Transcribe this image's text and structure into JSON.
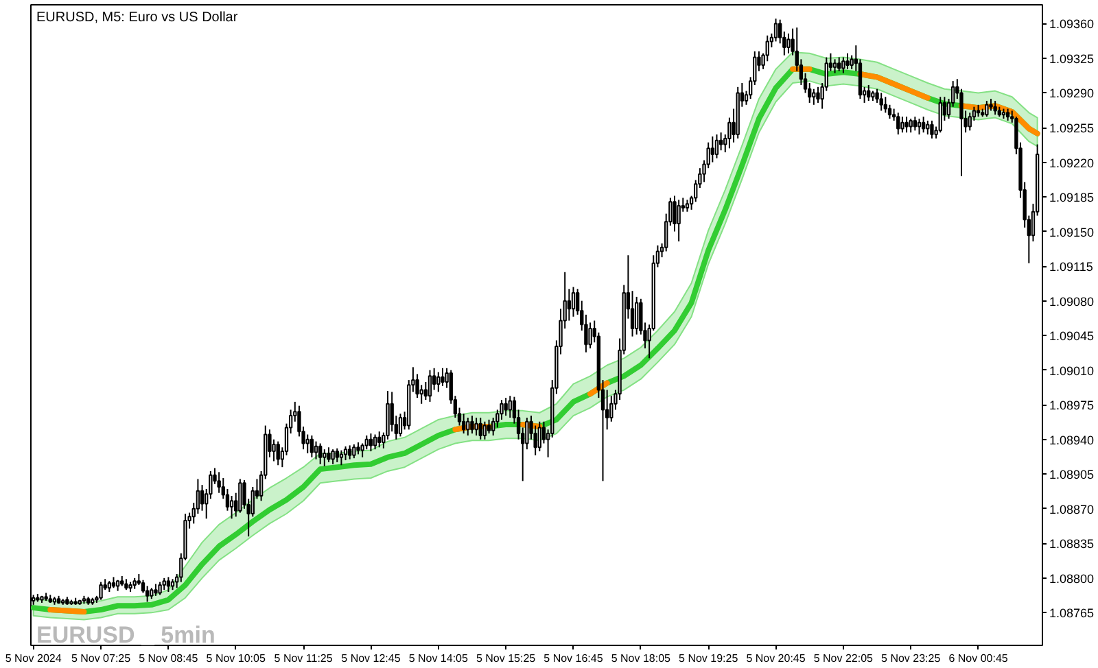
{
  "chart_data": {
    "type": "candlestick",
    "title": "EURUSD, M5: Euro vs US Dollar",
    "annotations": [
      "EURUSD _ 5min"
    ],
    "x": [
      "2024-11-05T06:05",
      "2024-11-05T06:10",
      "2024-11-05T06:15",
      "2024-11-05T06:20",
      "2024-11-05T06:25",
      "2024-11-05T06:30",
      "2024-11-05T06:35",
      "2024-11-05T06:40",
      "2024-11-05T06:45",
      "2024-11-05T06:50",
      "2024-11-05T06:55",
      "2024-11-05T07:00",
      "2024-11-05T07:05",
      "2024-11-05T07:10",
      "2024-11-05T07:15",
      "2024-11-05T07:20",
      "2024-11-05T07:25",
      "2024-11-05T07:30",
      "2024-11-05T07:35",
      "2024-11-05T07:40",
      "2024-11-05T07:45",
      "2024-11-05T07:50",
      "2024-11-05T07:55",
      "2024-11-05T08:00",
      "2024-11-05T08:05",
      "2024-11-05T08:10",
      "2024-11-05T08:15",
      "2024-11-05T08:20",
      "2024-11-05T08:25",
      "2024-11-05T08:30",
      "2024-11-05T08:35",
      "2024-11-05T08:40",
      "2024-11-05T08:45",
      "2024-11-05T08:50",
      "2024-11-05T08:55",
      "2024-11-05T09:00",
      "2024-11-05T09:05",
      "2024-11-05T09:10",
      "2024-11-05T09:15",
      "2024-11-05T09:20",
      "2024-11-05T09:25",
      "2024-11-05T09:30",
      "2024-11-05T09:35",
      "2024-11-05T09:40",
      "2024-11-05T09:45",
      "2024-11-05T09:50",
      "2024-11-05T09:55",
      "2024-11-05T10:00",
      "2024-11-05T10:05",
      "2024-11-05T10:10",
      "2024-11-05T10:15",
      "2024-11-05T10:20",
      "2024-11-05T10:25",
      "2024-11-05T10:30",
      "2024-11-05T10:35",
      "2024-11-05T10:40",
      "2024-11-05T10:45",
      "2024-11-05T10:50",
      "2024-11-05T10:55",
      "2024-11-05T11:00",
      "2024-11-05T11:05",
      "2024-11-05T11:10",
      "2024-11-05T11:15",
      "2024-11-05T11:20",
      "2024-11-05T11:25",
      "2024-11-05T11:30",
      "2024-11-05T11:35",
      "2024-11-05T11:40",
      "2024-11-05T11:45",
      "2024-11-05T11:50",
      "2024-11-05T11:55",
      "2024-11-05T12:00",
      "2024-11-05T12:05",
      "2024-11-05T12:10",
      "2024-11-05T12:15",
      "2024-11-05T12:20",
      "2024-11-05T12:25",
      "2024-11-05T12:30",
      "2024-11-05T12:35",
      "2024-11-05T12:40",
      "2024-11-05T12:45",
      "2024-11-05T12:50",
      "2024-11-05T12:55",
      "2024-11-05T13:00",
      "2024-11-05T13:05",
      "2024-11-05T13:10",
      "2024-11-05T13:15",
      "2024-11-05T13:20",
      "2024-11-05T13:25",
      "2024-11-05T13:30",
      "2024-11-05T13:35",
      "2024-11-05T13:40",
      "2024-11-05T13:45",
      "2024-11-05T13:50",
      "2024-11-05T13:55",
      "2024-11-05T14:00",
      "2024-11-05T14:05",
      "2024-11-05T14:10",
      "2024-11-05T14:15",
      "2024-11-05T14:20",
      "2024-11-05T14:25",
      "2024-11-05T14:30",
      "2024-11-05T14:35",
      "2024-11-05T14:40",
      "2024-11-05T14:45",
      "2024-11-05T14:50",
      "2024-11-05T14:55",
      "2024-11-05T15:00",
      "2024-11-05T15:05",
      "2024-11-05T15:10",
      "2024-11-05T15:15",
      "2024-11-05T15:20",
      "2024-11-05T15:25",
      "2024-11-05T15:30",
      "2024-11-05T15:35",
      "2024-11-05T15:40",
      "2024-11-05T15:45",
      "2024-11-05T15:50",
      "2024-11-05T15:55",
      "2024-11-05T16:00",
      "2024-11-05T16:05",
      "2024-11-05T16:10",
      "2024-11-05T16:15",
      "2024-11-05T16:20",
      "2024-11-05T16:25",
      "2024-11-05T16:30",
      "2024-11-05T16:35",
      "2024-11-05T16:40",
      "2024-11-05T16:45",
      "2024-11-05T16:50",
      "2024-11-05T16:55",
      "2024-11-05T17:00",
      "2024-11-05T17:05",
      "2024-11-05T17:10",
      "2024-11-05T17:15",
      "2024-11-05T17:20",
      "2024-11-05T17:25",
      "2024-11-05T17:30",
      "2024-11-05T17:35",
      "2024-11-05T17:40",
      "2024-11-05T17:45",
      "2024-11-05T17:50",
      "2024-11-05T17:55",
      "2024-11-05T18:00",
      "2024-11-05T18:05",
      "2024-11-05T18:10",
      "2024-11-05T18:15",
      "2024-11-05T18:20",
      "2024-11-05T18:25",
      "2024-11-05T18:30",
      "2024-11-05T18:35",
      "2024-11-05T18:40",
      "2024-11-05T18:45",
      "2024-11-05T18:50",
      "2024-11-05T18:55",
      "2024-11-05T19:00",
      "2024-11-05T19:05",
      "2024-11-05T19:10",
      "2024-11-05T19:15",
      "2024-11-05T19:20",
      "2024-11-05T19:25",
      "2024-11-05T19:30",
      "2024-11-05T19:35",
      "2024-11-05T19:40",
      "2024-11-05T19:45",
      "2024-11-05T19:50",
      "2024-11-05T19:55",
      "2024-11-05T20:00",
      "2024-11-05T20:05",
      "2024-11-05T20:10",
      "2024-11-05T20:15",
      "2024-11-05T20:20",
      "2024-11-05T20:25",
      "2024-11-05T20:30",
      "2024-11-05T20:35",
      "2024-11-05T20:40",
      "2024-11-05T20:45",
      "2024-11-05T20:50",
      "2024-11-05T20:55",
      "2024-11-05T21:00",
      "2024-11-05T21:05",
      "2024-11-05T21:10",
      "2024-11-05T21:15",
      "2024-11-05T21:20",
      "2024-11-05T21:25",
      "2024-11-05T21:30",
      "2024-11-05T21:35",
      "2024-11-05T21:40",
      "2024-11-05T21:45",
      "2024-11-05T21:50",
      "2024-11-05T21:55",
      "2024-11-05T22:00",
      "2024-11-05T22:05",
      "2024-11-05T22:10",
      "2024-11-05T22:15",
      "2024-11-05T22:20",
      "2024-11-05T22:25",
      "2024-11-05T22:30",
      "2024-11-05T22:35",
      "2024-11-05T22:40",
      "2024-11-05T22:45",
      "2024-11-05T22:50",
      "2024-11-05T22:55",
      "2024-11-05T23:00",
      "2024-11-05T23:05",
      "2024-11-05T23:10",
      "2024-11-05T23:15",
      "2024-11-05T23:20",
      "2024-11-05T23:25",
      "2024-11-05T23:30",
      "2024-11-05T23:35",
      "2024-11-05T23:40",
      "2024-11-05T23:45",
      "2024-11-05T23:50",
      "2024-11-05T23:55",
      "2024-11-06T00:00",
      "2024-11-06T00:05",
      "2024-11-06T00:10",
      "2024-11-06T00:15",
      "2024-11-06T00:20",
      "2024-11-06T00:25",
      "2024-11-06T00:30",
      "2024-11-06T00:35",
      "2024-11-06T00:40",
      "2024-11-06T00:45",
      "2024-11-06T00:50",
      "2024-11-06T00:55",
      "2024-11-06T01:00",
      "2024-11-06T01:05",
      "2024-11-06T01:10",
      "2024-11-06T01:15",
      "2024-11-06T01:20",
      "2024-11-06T01:25",
      "2024-11-06T01:30",
      "2024-11-06T01:35",
      "2024-11-06T01:40",
      "2024-11-06T01:45",
      "2024-11-06T01:50",
      "2024-11-06T01:55"
    ],
    "ohlc": [
      [
        1.08777,
        1.08783,
        1.08773,
        1.0878
      ],
      [
        1.0878,
        1.08784,
        1.08776,
        1.08778
      ],
      [
        1.08778,
        1.08782,
        1.08775,
        1.08781
      ],
      [
        1.08781,
        1.08785,
        1.08777,
        1.08779
      ],
      [
        1.08779,
        1.08783,
        1.08775,
        1.08776
      ],
      [
        1.08776,
        1.08781,
        1.08773,
        1.08779
      ],
      [
        1.08779,
        1.08782,
        1.08774,
        1.08775
      ],
      [
        1.08775,
        1.08779,
        1.08773,
        1.08777
      ],
      [
        1.08778,
        1.08781,
        1.08773,
        1.08774
      ],
      [
        1.08774,
        1.08778,
        1.08773,
        1.08776
      ],
      [
        1.08776,
        1.0878,
        1.08773,
        1.08774
      ],
      [
        1.08774,
        1.08778,
        1.08773,
        1.08777
      ],
      [
        1.08777,
        1.08782,
        1.08774,
        1.08779
      ],
      [
        1.08779,
        1.08781,
        1.08773,
        1.08775
      ],
      [
        1.08775,
        1.0878,
        1.08773,
        1.08778
      ],
      [
        1.08778,
        1.08782,
        1.08775,
        1.0878
      ],
      [
        1.0878,
        1.08796,
        1.08778,
        1.08793
      ],
      [
        1.08793,
        1.08799,
        1.08788,
        1.0879
      ],
      [
        1.0879,
        1.08797,
        1.08786,
        1.08795
      ],
      [
        1.08795,
        1.08801,
        1.0879,
        1.08792
      ],
      [
        1.08792,
        1.08798,
        1.08787,
        1.08797
      ],
      [
        1.08797,
        1.08802,
        1.08792,
        1.08794
      ],
      [
        1.08794,
        1.08799,
        1.08788,
        1.0879
      ],
      [
        1.0879,
        1.08796,
        1.08786,
        1.08793
      ],
      [
        1.08793,
        1.088,
        1.08789,
        1.08797
      ],
      [
        1.08797,
        1.08804,
        1.08793,
        1.08795
      ],
      [
        1.08795,
        1.08798,
        1.08785,
        1.08787
      ],
      [
        1.08787,
        1.08792,
        1.08776,
        1.08782
      ],
      [
        1.08782,
        1.0879,
        1.08779,
        1.08788
      ],
      [
        1.08788,
        1.08794,
        1.08782,
        1.08785
      ],
      [
        1.08785,
        1.08796,
        1.08783,
        1.08793
      ],
      [
        1.08793,
        1.088,
        1.08788,
        1.08797
      ],
      [
        1.08797,
        1.08801,
        1.08786,
        1.08792
      ],
      [
        1.08792,
        1.08799,
        1.08788,
        1.08796
      ],
      [
        1.08796,
        1.08804,
        1.0879,
        1.08801
      ],
      [
        1.08801,
        1.08825,
        1.08796,
        1.0882
      ],
      [
        1.0882,
        1.08865,
        1.08818,
        1.08858
      ],
      [
        1.08858,
        1.08866,
        1.0885,
        1.08862
      ],
      [
        1.08862,
        1.08876,
        1.08855,
        1.0887
      ],
      [
        1.0887,
        1.089,
        1.08865,
        1.08888
      ],
      [
        1.08888,
        1.08894,
        1.08868,
        1.08875
      ],
      [
        1.08875,
        1.0889,
        1.0886,
        1.08885
      ],
      [
        1.08885,
        1.08908,
        1.0888,
        1.08904
      ],
      [
        1.08904,
        1.08911,
        1.08895,
        1.08898
      ],
      [
        1.08898,
        1.08907,
        1.08886,
        1.08892
      ],
      [
        1.08892,
        1.08901,
        1.0888,
        1.08884
      ],
      [
        1.08884,
        1.0889,
        1.08868,
        1.08872
      ],
      [
        1.08872,
        1.08883,
        1.0886,
        1.08878
      ],
      [
        1.08878,
        1.08886,
        1.08862,
        1.08868
      ],
      [
        1.08868,
        1.089,
        1.08866,
        1.08896
      ],
      [
        1.08896,
        1.08899,
        1.0887,
        1.08874
      ],
      [
        1.08874,
        1.0888,
        1.08842,
        1.08865
      ],
      [
        1.08865,
        1.08892,
        1.08862,
        1.08888
      ],
      [
        1.08888,
        1.089,
        1.0888,
        1.08883
      ],
      [
        1.08883,
        1.08908,
        1.08878,
        1.08904
      ],
      [
        1.08904,
        1.08954,
        1.089,
        1.08945
      ],
      [
        1.08945,
        1.0895,
        1.08922,
        1.08928
      ],
      [
        1.08928,
        1.0894,
        1.08918,
        1.08935
      ],
      [
        1.08935,
        1.08938,
        1.08914,
        1.0892
      ],
      [
        1.0892,
        1.08932,
        1.08912,
        1.08928
      ],
      [
        1.08928,
        1.08956,
        1.08924,
        1.08952
      ],
      [
        1.08952,
        1.0897,
        1.08946,
        1.08964
      ],
      [
        1.08964,
        1.08978,
        1.08958,
        1.08968
      ],
      [
        1.08968,
        1.08974,
        1.08943,
        1.08948
      ],
      [
        1.08948,
        1.08953,
        1.0893,
        1.08936
      ],
      [
        1.08936,
        1.08945,
        1.08926,
        1.0894
      ],
      [
        1.0894,
        1.08944,
        1.08922,
        1.08927
      ],
      [
        1.08927,
        1.08938,
        1.0892,
        1.08933
      ],
      [
        1.08933,
        1.08936,
        1.08915,
        1.08922
      ],
      [
        1.08922,
        1.0893,
        1.08913,
        1.08926
      ],
      [
        1.08926,
        1.08932,
        1.08917,
        1.0892
      ],
      [
        1.0892,
        1.0893,
        1.08915,
        1.08928
      ],
      [
        1.08928,
        1.08931,
        1.08917,
        1.08922
      ],
      [
        1.08922,
        1.08929,
        1.08914,
        1.08925
      ],
      [
        1.08925,
        1.08933,
        1.08919,
        1.0893
      ],
      [
        1.0893,
        1.08934,
        1.0892,
        1.08924
      ],
      [
        1.08924,
        1.08935,
        1.08921,
        1.08932
      ],
      [
        1.08932,
        1.08937,
        1.08925,
        1.08929
      ],
      [
        1.08929,
        1.08936,
        1.08922,
        1.08934
      ],
      [
        1.08934,
        1.08944,
        1.0893,
        1.0894
      ],
      [
        1.0894,
        1.08946,
        1.08928,
        1.08934
      ],
      [
        1.08934,
        1.08945,
        1.0893,
        1.08942
      ],
      [
        1.08942,
        1.08948,
        1.08932,
        1.08937
      ],
      [
        1.08937,
        1.08947,
        1.08931,
        1.08944
      ],
      [
        1.08944,
        1.08989,
        1.0894,
        1.08976
      ],
      [
        1.08976,
        1.08988,
        1.08948,
        1.08955
      ],
      [
        1.08955,
        1.08964,
        1.0894,
        1.08946
      ],
      [
        1.08946,
        1.08966,
        1.08943,
        1.08962
      ],
      [
        1.08962,
        1.08968,
        1.0895,
        1.08954
      ],
      [
        1.08954,
        1.09,
        1.0895,
        1.08995
      ],
      [
        1.08995,
        1.09013,
        1.08988,
        1.09
      ],
      [
        1.09,
        1.09006,
        1.08982,
        1.08986
      ],
      [
        1.08986,
        1.08995,
        1.08976,
        1.0899
      ],
      [
        1.0899,
        1.08998,
        1.0898,
        1.08984
      ],
      [
        1.08984,
        1.0901,
        1.08978,
        1.09004
      ],
      [
        1.09004,
        1.09012,
        1.0899,
        1.08996
      ],
      [
        1.08996,
        1.09008,
        1.08988,
        1.09003
      ],
      [
        1.09003,
        1.09012,
        1.08994,
        1.08998
      ],
      [
        1.08998,
        1.09012,
        1.08992,
        1.09007
      ],
      [
        1.09007,
        1.0901,
        1.08976,
        1.0898
      ],
      [
        1.0898,
        1.08984,
        1.08962,
        1.08966
      ],
      [
        1.08966,
        1.08972,
        1.08954,
        1.08958
      ],
      [
        1.08958,
        1.08966,
        1.08946,
        1.0895
      ],
      [
        1.0895,
        1.08962,
        1.08944,
        1.08958
      ],
      [
        1.08958,
        1.08964,
        1.08946,
        1.0895
      ],
      [
        1.0895,
        1.08962,
        1.08944,
        1.08956
      ],
      [
        1.08956,
        1.08962,
        1.0894,
        1.08944
      ],
      [
        1.08944,
        1.08958,
        1.0894,
        1.08954
      ],
      [
        1.08954,
        1.0896,
        1.08946,
        1.08949
      ],
      [
        1.08949,
        1.08962,
        1.08944,
        1.08958
      ],
      [
        1.08958,
        1.0897,
        1.08952,
        1.08966
      ],
      [
        1.08966,
        1.0898,
        1.0896,
        1.08976
      ],
      [
        1.08976,
        1.08982,
        1.08964,
        1.0897
      ],
      [
        1.0897,
        1.08984,
        1.08962,
        1.08979
      ],
      [
        1.08979,
        1.08983,
        1.08956,
        1.08962
      ],
      [
        1.08962,
        1.0897,
        1.0894,
        1.08946
      ],
      [
        1.08946,
        1.08952,
        1.08898,
        1.08936
      ],
      [
        1.08936,
        1.08962,
        1.0893,
        1.08958
      ],
      [
        1.08958,
        1.08964,
        1.0894,
        1.08946
      ],
      [
        1.08946,
        1.08954,
        1.08924,
        1.08932
      ],
      [
        1.08932,
        1.08958,
        1.08928,
        1.08952
      ],
      [
        1.08952,
        1.08958,
        1.08936,
        1.0894
      ],
      [
        1.0894,
        1.0895,
        1.08922,
        1.08946
      ],
      [
        1.08946,
        1.09,
        1.08942,
        1.08992
      ],
      [
        1.08992,
        1.0904,
        1.08986,
        1.09034
      ],
      [
        1.09034,
        1.09072,
        1.09026,
        1.0906
      ],
      [
        1.0906,
        1.09109,
        1.09052,
        1.0908
      ],
      [
        1.0908,
        1.09092,
        1.0906,
        1.09072
      ],
      [
        1.09072,
        1.09094,
        1.09064,
        1.09088
      ],
      [
        1.09088,
        1.09092,
        1.09066,
        1.0907
      ],
      [
        1.0907,
        1.0908,
        1.0905,
        1.09056
      ],
      [
        1.09056,
        1.09066,
        1.09028,
        1.09036
      ],
      [
        1.09036,
        1.09058,
        1.09032,
        1.09052
      ],
      [
        1.09052,
        1.0906,
        1.09038,
        1.09044
      ],
      [
        1.09044,
        1.09048,
        1.08982,
        1.0899
      ],
      [
        1.0899,
        1.09,
        1.08898,
        1.0897
      ],
      [
        1.0897,
        1.0899,
        1.0895,
        1.08962
      ],
      [
        1.08962,
        1.08984,
        1.08958,
        1.08976
      ],
      [
        1.08976,
        1.0899,
        1.0897,
        1.08986
      ],
      [
        1.08986,
        1.09042,
        1.0898,
        1.0903
      ],
      [
        1.0903,
        1.09096,
        1.09026,
        1.09088
      ],
      [
        1.09088,
        1.09126,
        1.09062,
        1.09072
      ],
      [
        1.09072,
        1.0909,
        1.09044,
        1.09052
      ],
      [
        1.09052,
        1.09084,
        1.09046,
        1.09078
      ],
      [
        1.09078,
        1.09082,
        1.09046,
        1.0905
      ],
      [
        1.0905,
        1.09058,
        1.09032,
        1.0904
      ],
      [
        1.0904,
        1.09056,
        1.09022,
        1.09052
      ],
      [
        1.09052,
        1.09126,
        1.0905,
        1.09118
      ],
      [
        1.09118,
        1.09136,
        1.09114,
        1.0913
      ],
      [
        1.0913,
        1.09138,
        1.09124,
        1.09134
      ],
      [
        1.09134,
        1.09168,
        1.0913,
        1.0916
      ],
      [
        1.0916,
        1.09184,
        1.09156,
        1.0918
      ],
      [
        1.0918,
        1.09186,
        1.0915,
        1.09158
      ],
      [
        1.09158,
        1.09182,
        1.0914,
        1.09176
      ],
      [
        1.09176,
        1.09184,
        1.0917,
        1.09174
      ],
      [
        1.09174,
        1.09182,
        1.0917,
        1.09178
      ],
      [
        1.09178,
        1.09186,
        1.09172,
        1.09184
      ],
      [
        1.09184,
        1.09202,
        1.0918,
        1.09198
      ],
      [
        1.09198,
        1.09214,
        1.09194,
        1.09208
      ],
      [
        1.09208,
        1.09222,
        1.092,
        1.09218
      ],
      [
        1.09218,
        1.0924,
        1.09214,
        1.09234
      ],
      [
        1.09234,
        1.09246,
        1.0922,
        1.09228
      ],
      [
        1.09228,
        1.09248,
        1.09224,
        1.09242
      ],
      [
        1.09242,
        1.0925,
        1.09232,
        1.09238
      ],
      [
        1.09238,
        1.09248,
        1.0923,
        1.09244
      ],
      [
        1.09244,
        1.09265,
        1.09234,
        1.0926
      ],
      [
        1.0926,
        1.09274,
        1.0924,
        1.09248
      ],
      [
        1.09248,
        1.09296,
        1.09244,
        1.0929
      ],
      [
        1.0929,
        1.093,
        1.09276,
        1.09282
      ],
      [
        1.09282,
        1.09292,
        1.09278,
        1.09288
      ],
      [
        1.09288,
        1.09306,
        1.09284,
        1.09302
      ],
      [
        1.09302,
        1.09332,
        1.09298,
        1.09326
      ],
      [
        1.09326,
        1.09332,
        1.09312,
        1.09318
      ],
      [
        1.09318,
        1.0933,
        1.09314,
        1.09328
      ],
      [
        1.09328,
        1.09348,
        1.09322,
        1.09342
      ],
      [
        1.09342,
        1.0935,
        1.09336,
        1.09346
      ],
      [
        1.09346,
        1.09365,
        1.09342,
        1.0936
      ],
      [
        1.0936,
        1.09364,
        1.0934,
        1.09346
      ],
      [
        1.09346,
        1.09352,
        1.09328,
        1.09336
      ],
      [
        1.09336,
        1.0935,
        1.0933,
        1.09344
      ],
      [
        1.09344,
        1.09355,
        1.09328,
        1.09332
      ],
      [
        1.09332,
        1.09356,
        1.09312,
        1.09318
      ],
      [
        1.09318,
        1.09324,
        1.09298,
        1.09304
      ],
      [
        1.09304,
        1.0931,
        1.0929,
        1.09294
      ],
      [
        1.09294,
        1.093,
        1.0928,
        1.09286
      ],
      [
        1.09286,
        1.09294,
        1.09278,
        1.0929
      ],
      [
        1.0929,
        1.09296,
        1.0928,
        1.09284
      ],
      [
        1.09284,
        1.093,
        1.09274,
        1.09296
      ],
      [
        1.09296,
        1.09326,
        1.09292,
        1.0932
      ],
      [
        1.0932,
        1.0933,
        1.09312,
        1.09316
      ],
      [
        1.09316,
        1.09324,
        1.0931,
        1.0932
      ],
      [
        1.0932,
        1.09326,
        1.09312,
        1.09315
      ],
      [
        1.09315,
        1.09326,
        1.0931,
        1.09322
      ],
      [
        1.09322,
        1.0933,
        1.09314,
        1.09318
      ],
      [
        1.09318,
        1.09328,
        1.09314,
        1.09324
      ],
      [
        1.09324,
        1.09338,
        1.09312,
        1.0932
      ],
      [
        1.0932,
        1.09324,
        1.09284,
        1.09288
      ],
      [
        1.09288,
        1.09296,
        1.0928,
        1.09292
      ],
      [
        1.09292,
        1.09298,
        1.09282,
        1.09286
      ],
      [
        1.09286,
        1.09292,
        1.09282,
        1.0929
      ],
      [
        1.0929,
        1.09294,
        1.0928,
        1.09284
      ],
      [
        1.09284,
        1.0929,
        1.09272,
        1.09278
      ],
      [
        1.09278,
        1.09286,
        1.0927,
        1.09274
      ],
      [
        1.09274,
        1.09278,
        1.09264,
        1.09268
      ],
      [
        1.09268,
        1.09274,
        1.09262,
        1.09266
      ],
      [
        1.09266,
        1.0927,
        1.09248,
        1.09254
      ],
      [
        1.09254,
        1.09266,
        1.0925,
        1.0926
      ],
      [
        1.0926,
        1.09266,
        1.0925,
        1.09256
      ],
      [
        1.09256,
        1.09264,
        1.0925,
        1.09262
      ],
      [
        1.09262,
        1.09266,
        1.09252,
        1.09256
      ],
      [
        1.09256,
        1.09264,
        1.09248,
        1.0926
      ],
      [
        1.0926,
        1.09266,
        1.0925,
        1.09254
      ],
      [
        1.09254,
        1.09262,
        1.09248,
        1.09258
      ],
      [
        1.09258,
        1.09262,
        1.09244,
        1.09248
      ],
      [
        1.09248,
        1.09256,
        1.09244,
        1.09252
      ],
      [
        1.09252,
        1.09286,
        1.0925,
        1.0928
      ],
      [
        1.0928,
        1.09286,
        1.09262,
        1.09268
      ],
      [
        1.09268,
        1.09284,
        1.09264,
        1.0928
      ],
      [
        1.0928,
        1.09302,
        1.09276,
        1.09296
      ],
      [
        1.09296,
        1.09304,
        1.09284,
        1.0929
      ],
      [
        1.0929,
        1.09294,
        1.09206,
        1.09264
      ],
      [
        1.09264,
        1.09272,
        1.0925,
        1.09256
      ],
      [
        1.09256,
        1.0927,
        1.09252,
        1.09266
      ],
      [
        1.09266,
        1.09276,
        1.09262,
        1.09272
      ],
      [
        1.09272,
        1.09278,
        1.09266,
        1.0927
      ],
      [
        1.0927,
        1.09274,
        1.09266,
        1.09268
      ],
      [
        1.09268,
        1.09282,
        1.09266,
        1.09278
      ],
      [
        1.09278,
        1.09284,
        1.09272,
        1.09276
      ],
      [
        1.09276,
        1.09282,
        1.09268,
        1.09272
      ],
      [
        1.09272,
        1.09276,
        1.09266,
        1.09268
      ],
      [
        1.09268,
        1.09274,
        1.09264,
        1.0927
      ],
      [
        1.0927,
        1.09274,
        1.09262,
        1.09266
      ],
      [
        1.09266,
        1.09272,
        1.0926,
        1.09264
      ],
      [
        1.09264,
        1.09266,
        1.09228,
        1.09234
      ],
      [
        1.09234,
        1.0924,
        1.09184,
        1.09192
      ],
      [
        1.09192,
        1.092,
        1.09154,
        1.09162
      ],
      [
        1.09162,
        1.09166,
        1.09118,
        1.09146
      ],
      [
        1.09146,
        1.09178,
        1.0914,
        1.0917
      ],
      [
        1.0917,
        1.09238,
        1.09166,
        1.09228
      ]
    ],
    "series": [
      {
        "type": "line",
        "color": "#32cd32",
        "x": [
          "2024-11-05T06:05",
          "2024-11-05T06:25",
          "2024-11-05T06:45",
          "2024-11-05T07:05",
          "2024-11-05T07:25",
          "2024-11-05T07:45",
          "2024-11-05T08:05",
          "2024-11-05T08:25",
          "2024-11-05T08:45",
          "2024-11-05T09:05",
          "2024-11-05T09:25",
          "2024-11-05T09:45",
          "2024-11-05T10:05",
          "2024-11-05T10:25",
          "2024-11-05T10:45",
          "2024-11-05T11:05",
          "2024-11-05T11:25",
          "2024-11-05T11:45",
          "2024-11-05T12:05",
          "2024-11-05T12:25",
          "2024-11-05T12:45",
          "2024-11-05T13:05",
          "2024-11-05T13:25",
          "2024-11-05T13:45",
          "2024-11-05T14:05",
          "2024-11-05T14:25",
          "2024-11-05T14:45",
          "2024-11-05T15:05",
          "2024-11-05T15:25",
          "2024-11-05T15:45",
          "2024-11-05T16:05",
          "2024-11-05T16:25",
          "2024-11-05T16:45",
          "2024-11-05T17:05",
          "2024-11-05T17:25",
          "2024-11-05T17:45",
          "2024-11-05T18:05",
          "2024-11-05T18:25",
          "2024-11-05T18:45",
          "2024-11-05T19:05",
          "2024-11-05T19:25",
          "2024-11-05T19:45",
          "2024-11-05T20:05",
          "2024-11-05T20:25",
          "2024-11-05T20:45",
          "2024-11-05T21:05",
          "2024-11-05T21:25",
          "2024-11-05T21:45",
          "2024-11-05T22:05",
          "2024-11-05T22:25",
          "2024-11-05T22:45",
          "2024-11-05T23:05",
          "2024-11-05T23:25",
          "2024-11-05T23:45",
          "2024-11-06T00:05",
          "2024-11-06T00:25",
          "2024-11-06T00:45",
          "2024-11-06T01:05",
          "2024-11-06T01:25",
          "2024-11-06T01:45",
          "2024-11-06T01:55"
        ],
        "values": [
          1.0877,
          1.08768,
          1.08767,
          1.08766,
          1.08768,
          1.08772,
          1.08772,
          1.08773,
          1.08778,
          1.08793,
          1.08814,
          1.08832,
          1.08844,
          1.08857,
          1.08869,
          1.08879,
          1.08892,
          1.0891,
          1.08912,
          1.08914,
          1.08915,
          1.08922,
          1.08926,
          1.08935,
          1.08944,
          1.0895,
          1.08953,
          1.08953,
          1.08955,
          1.08955,
          1.08953,
          1.0896,
          1.08978,
          1.08986,
          1.08997,
          1.09004,
          1.09015,
          1.09032,
          1.0905,
          1.09078,
          1.09131,
          1.09172,
          1.09217,
          1.09264,
          1.09295,
          1.09314,
          1.09314,
          1.09309,
          1.09311,
          1.09309,
          1.09306,
          1.09299,
          1.09292,
          1.09285,
          1.09279,
          1.09277,
          1.09275,
          1.09277,
          1.09271,
          1.09254,
          1.09249
        ],
        "upper": [
          1.08779,
          1.08777,
          1.08776,
          1.08775,
          1.08777,
          1.08781,
          1.08781,
          1.08782,
          1.08788,
          1.08812,
          1.08836,
          1.08854,
          1.08866,
          1.08879,
          1.08891,
          1.08901,
          1.08912,
          1.08926,
          1.08926,
          1.08928,
          1.08929,
          1.08938,
          1.08942,
          1.08951,
          1.0896,
          1.08964,
          1.08967,
          1.08967,
          1.08969,
          1.08969,
          1.08967,
          1.08976,
          1.08996,
          1.09004,
          1.09015,
          1.09022,
          1.09033,
          1.0905,
          1.09069,
          1.09098,
          1.09151,
          1.09192,
          1.09237,
          1.09284,
          1.09314,
          1.09331,
          1.0933,
          1.09325,
          1.09326,
          1.09324,
          1.09321,
          1.09314,
          1.09307,
          1.093,
          1.09294,
          1.09292,
          1.0929,
          1.09292,
          1.09286,
          1.0927,
          1.09265
        ],
        "lower": [
          1.08762,
          1.0876,
          1.08759,
          1.08758,
          1.0876,
          1.08764,
          1.08764,
          1.08765,
          1.08768,
          1.0878,
          1.088,
          1.08818,
          1.0883,
          1.08843,
          1.08855,
          1.08865,
          1.08878,
          1.08896,
          1.08898,
          1.089,
          1.08901,
          1.08908,
          1.08912,
          1.08921,
          1.0893,
          1.08936,
          1.08939,
          1.08939,
          1.08941,
          1.08941,
          1.08939,
          1.08946,
          1.08964,
          1.08972,
          1.08983,
          1.0899,
          1.09001,
          1.09018,
          1.09036,
          1.09064,
          1.09117,
          1.09158,
          1.09203,
          1.0925,
          1.09281,
          1.093,
          1.09302,
          1.09297,
          1.09299,
          1.09297,
          1.09294,
          1.09287,
          1.0928,
          1.09273,
          1.09267,
          1.09265,
          1.09263,
          1.09265,
          1.09259,
          1.09241,
          1.09236
        ]
      },
      {
        "type": "line",
        "color": "#ff8c00",
        "x": [
          "2024-11-05T06:25",
          "2024-11-05T06:45",
          "2024-11-05T07:05"
        ],
        "values": [
          1.08768,
          1.08767,
          1.08766
        ]
      },
      {
        "type": "line",
        "color": "#ff8c00",
        "x": [
          "2024-11-05T14:25",
          "2024-11-05T14:45",
          "2024-11-05T15:05"
        ],
        "values": [
          1.0895,
          1.08953,
          1.08953
        ]
      },
      {
        "type": "line",
        "color": "#ff8c00",
        "x": [
          "2024-11-05T15:45",
          "2024-11-05T16:05"
        ],
        "values": [
          1.08955,
          1.08953
        ]
      },
      {
        "type": "line",
        "color": "#ff8c00",
        "x": [
          "2024-11-05T17:05",
          "2024-11-05T17:25"
        ],
        "values": [
          1.08986,
          1.08997
        ]
      },
      {
        "type": "line",
        "color": "#ff8c00",
        "x": [
          "2024-11-05T21:05",
          "2024-11-05T21:25"
        ],
        "values": [
          1.09314,
          1.09314
        ]
      },
      {
        "type": "line",
        "color": "#ff8c00",
        "x": [
          "2024-11-05T22:25",
          "2024-11-05T22:45",
          "2024-11-05T23:05",
          "2024-11-05T23:25",
          "2024-11-05T23:45"
        ],
        "values": [
          1.09309,
          1.09306,
          1.09299,
          1.09292,
          1.09285
        ]
      },
      {
        "type": "line",
        "color": "#ff8c00",
        "x": [
          "2024-11-06T00:25",
          "2024-11-06T00:45",
          "2024-11-06T01:05",
          "2024-11-06T01:25",
          "2024-11-06T01:45",
          "2024-11-06T01:55"
        ],
        "values": [
          1.09277,
          1.09275,
          1.09277,
          1.09271,
          1.09254,
          1.09249
        ]
      }
    ],
    "xlim": [
      "2024-11-05T06:02",
      "2024-11-06T02:01"
    ],
    "xticks": [
      {
        "value": "2024-11-05T06:05",
        "label": "5 Nov 2024"
      },
      {
        "value": "2024-11-05T07:25",
        "label": "5 Nov 07:25"
      },
      {
        "value": "2024-11-05T08:45",
        "label": "5 Nov 08:45"
      },
      {
        "value": "2024-11-05T10:05",
        "label": "5 Nov 10:05"
      },
      {
        "value": "2024-11-05T11:25",
        "label": "5 Nov 11:25"
      },
      {
        "value": "2024-11-05T12:45",
        "label": "5 Nov 12:45"
      },
      {
        "value": "2024-11-05T14:05",
        "label": "5 Nov 14:05"
      },
      {
        "value": "2024-11-05T15:25",
        "label": "5 Nov 15:25"
      },
      {
        "value": "2024-11-05T16:45",
        "label": "5 Nov 16:45"
      },
      {
        "value": "2024-11-05T18:05",
        "label": "5 Nov 18:05"
      },
      {
        "value": "2024-11-05T19:25",
        "label": "5 Nov 19:25"
      },
      {
        "value": "2024-11-05T20:45",
        "label": "5 Nov 20:45"
      },
      {
        "value": "2024-11-05T22:05",
        "label": "5 Nov 22:05"
      },
      {
        "value": "2024-11-05T23:25",
        "label": "5 Nov 23:25"
      },
      {
        "value": "2024-11-06T00:45",
        "label": "6 Nov 00:45"
      }
    ],
    "ylim": [
      1.08732,
      1.09379
    ],
    "yticks": [
      1.08765,
      {
        "value": 1.088,
        "label": "1.08800"
      },
      1.08835,
      {
        "value": 1.0887,
        "label": "1.08870"
      },
      1.08905,
      {
        "value": 1.0894,
        "label": "1.08940"
      },
      1.08975,
      {
        "value": 1.0901,
        "label": "1.09010"
      },
      1.09045,
      {
        "value": 1.0908,
        "label": "1.09080"
      },
      1.09115,
      {
        "value": 1.0915,
        "label": "1.09150"
      },
      1.09185,
      {
        "value": 1.0922,
        "label": "1.09220"
      },
      1.09255,
      {
        "value": 1.0929,
        "label": "1.09290"
      },
      1.09325,
      {
        "value": 1.0936,
        "label": "1.09360"
      }
    ]
  }
}
